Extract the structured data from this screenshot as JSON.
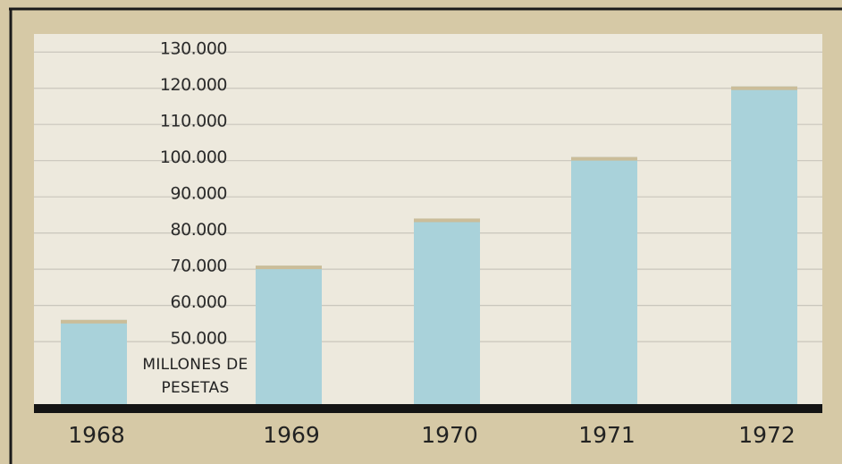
{
  "chart_data": {
    "type": "bar",
    "ylabel": "MILLONES DE PESETAS",
    "categories": [
      "1968",
      "1969",
      "1970",
      "1971",
      "1972"
    ],
    "values": [
      56000,
      71000,
      84000,
      101000,
      120500
    ],
    "color": "#a9d2da",
    "ylim": [
      31500,
      135000
    ],
    "yticks": [
      {
        "value": 50000,
        "label": "50.000"
      },
      {
        "value": 60000,
        "label": "60.000"
      },
      {
        "value": 70000,
        "label": "70.000"
      },
      {
        "value": 80000,
        "label": "80.000"
      },
      {
        "value": 90000,
        "label": "90.000"
      },
      {
        "value": 100000,
        "label": "100.000"
      },
      {
        "value": 110000,
        "label": "110.000"
      },
      {
        "value": 120000,
        "label": "120.000"
      },
      {
        "value": 130000,
        "label": "130.000"
      }
    ],
    "grid": true
  }
}
